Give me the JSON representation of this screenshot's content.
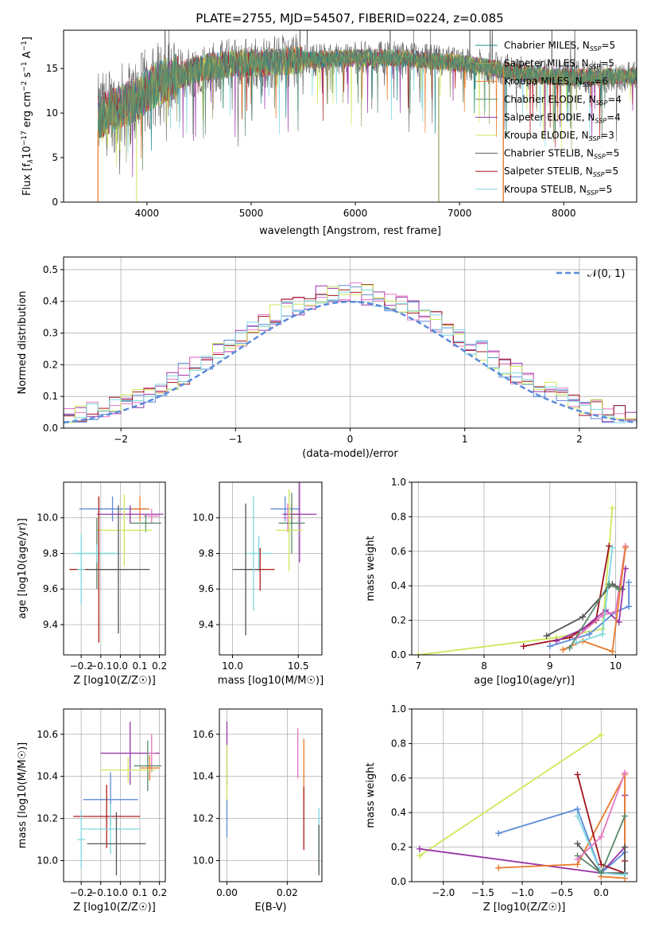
{
  "figure": {
    "title": "PLATE=2755, MJD=54507, FIBERID=0224, z=0.085"
  },
  "chart_data": [
    {
      "id": "spectrum",
      "type": "line",
      "xlabel": "wavelength [Angstrom, rest frame]",
      "ylabel": "Flux [f_λ 10^-17 erg cm^-2 s^-1 A^-1]",
      "xlim": [
        3200,
        8700
      ],
      "ylim": [
        0,
        19.3
      ],
      "xticks": [
        4000,
        5000,
        6000,
        7000,
        8000
      ],
      "yticks": [
        0,
        5,
        10,
        15
      ],
      "grid": false,
      "legend_position": "right",
      "series": [
        {
          "name": "Chabrier MILES, N_SSP=5",
          "color": "#1f8a8a"
        },
        {
          "name": "Salpeter MILES, N_SSP=5",
          "color": "#9aa05a"
        },
        {
          "name": "Kroupa MILES, N_SSP=6",
          "color": "#e87a2a"
        },
        {
          "name": "Chabrier ELODIE, N_SSP=4",
          "color": "#5a8a6a"
        },
        {
          "name": "Salpeter ELODIE, N_SSP=4",
          "color": "#9a36a8"
        },
        {
          "name": "Kroupa ELODIE, N_SSP=3",
          "color": "#cde85a"
        },
        {
          "name": "Chabrier STELIB, N_SSP=5",
          "color": "#555555"
        },
        {
          "name": "Salpeter STELIB, N_SSP=5",
          "color": "#b01a1a"
        },
        {
          "name": "Kroupa STELIB, N_SSP=5",
          "color": "#7ed8e0"
        }
      ],
      "envelope": {
        "x": [
          3530,
          3600,
          3700,
          3800,
          3900,
          4000,
          4100,
          4200,
          4300,
          4400,
          4500,
          4600,
          4700,
          4800,
          4900,
          5000,
          5200,
          5400,
          5600,
          5800,
          6000,
          6200,
          6400,
          6600,
          6800,
          7000,
          7200,
          7400,
          7600,
          7800,
          8000,
          8200,
          8400,
          8700
        ],
        "y": [
          9.5,
          10.0,
          10.5,
          11.0,
          11.5,
          12.5,
          13.3,
          13.8,
          14.2,
          14.6,
          15.0,
          15.2,
          15.3,
          15.5,
          15.6,
          15.6,
          15.7,
          15.9,
          16.0,
          16.1,
          16.2,
          16.2,
          16.2,
          16.0,
          15.8,
          15.6,
          15.3,
          14.9,
          14.5,
          14.2,
          14.0,
          14.0,
          14.1,
          14.2
        ]
      }
    },
    {
      "id": "residuals",
      "type": "histogram",
      "xlabel": "(data-model)/error",
      "ylabel": "Normed distribution",
      "xlim": [
        -2.5,
        2.5
      ],
      "ylim": [
        0,
        0.54
      ],
      "xticks": [
        -2,
        -1,
        0,
        1,
        2
      ],
      "yticks": [
        0.0,
        0.1,
        0.2,
        0.3,
        0.4,
        0.5
      ],
      "grid": true,
      "legend_position": "top-right",
      "reference_curve": {
        "name": "𝒩(0, 1)",
        "color": "#5b8bd9",
        "mu": 0,
        "sigma": 1
      },
      "bins": {
        "start": -2.5,
        "width": 0.1,
        "count": 50
      },
      "series_colors": [
        "#5b8bd9",
        "#9a36a8",
        "#e377c2",
        "#a0141e",
        "#cde85a",
        "#7ed8e0"
      ]
    },
    {
      "id": "age_vs_Z",
      "type": "errorbar",
      "xlabel": "Z [log10(Z/Z☉)]",
      "ylabel": "age  [log10(age/yr)]",
      "xlim": [
        -0.29,
        0.23
      ],
      "ylim": [
        9.23,
        10.2
      ],
      "xticks": [
        -0.2,
        -0.1,
        0.0,
        0.1,
        0.2
      ],
      "yticks": [
        9.4,
        9.6,
        9.8,
        10.0
      ],
      "grid": true,
      "points": [
        {
          "x": -0.04,
          "y": 10.05,
          "xerr": [
            0.17,
            0.17
          ],
          "yerr": [
            0.07,
            0.07
          ],
          "color": "#5b8bd9"
        },
        {
          "x": 0.1,
          "y": 10.05,
          "xerr": [
            0.05,
            0.05
          ],
          "yerr": [
            0.07,
            0.07
          ],
          "color": "#e87a2a"
        },
        {
          "x": 0.05,
          "y": 10.02,
          "xerr": [
            0.17,
            0.17
          ],
          "yerr": [
            0.05,
            0.05
          ],
          "color": "#9a36a8"
        },
        {
          "x": 0.16,
          "y": 10.01,
          "xerr": [
            0.04,
            0.04
          ],
          "yerr": [
            0.04,
            0.04
          ],
          "color": "#e377c2"
        },
        {
          "x": 0.13,
          "y": 9.97,
          "xerr": [
            0.08,
            0.08
          ],
          "yerr": [
            0.05,
            0.05
          ],
          "color": "#5a8a6a"
        },
        {
          "x": 0.02,
          "y": 9.93,
          "xerr": [
            0.14,
            0.14
          ],
          "yerr": [
            0.2,
            0.2
          ],
          "color": "#cde85a"
        },
        {
          "x": -0.12,
          "y": 9.8,
          "xerr": [
            0.1,
            0.1
          ],
          "yerr": [
            0.2,
            0.2
          ],
          "color": "#5a8a6a"
        },
        {
          "x": -0.12,
          "y": 9.8,
          "xerr": [
            0.12,
            0.12
          ],
          "yerr": [
            0.05,
            0.05
          ],
          "color": "#7ed8e0"
        },
        {
          "x": -0.11,
          "y": 9.71,
          "xerr": [
            0.15,
            0.15
          ],
          "yerr": [
            0.41,
            0.41
          ],
          "color": "#b01a1a"
        },
        {
          "x": -0.01,
          "y": 9.71,
          "xerr": [
            0.16,
            0.16
          ],
          "yerr": [
            0.36,
            0.36
          ],
          "color": "#555555"
        },
        {
          "x": -0.2,
          "y": 9.71,
          "xerr": [
            0.02,
            0.02
          ],
          "yerr": [
            0.2,
            0.2
          ],
          "color": "#7ed8e0"
        }
      ]
    },
    {
      "id": "age_vs_mass",
      "type": "errorbar",
      "xlabel": "mass [log10(M/M☉)]",
      "ylabel": "",
      "xlim": [
        9.9,
        10.68
      ],
      "ylim": [
        9.23,
        10.2
      ],
      "xticks": [
        10.0,
        10.5
      ],
      "yticks": [
        9.4,
        9.6,
        9.8,
        10.0
      ],
      "grid": true,
      "points": [
        {
          "x": 10.4,
          "y": 10.05,
          "xerr": [
            0.11,
            0.11
          ],
          "yerr": [
            0.07,
            0.07
          ],
          "color": "#5b8bd9"
        },
        {
          "x": 10.45,
          "y": 10.02,
          "xerr": [
            0.05,
            0.05
          ],
          "yerr": [
            0.06,
            0.06
          ],
          "color": "#e87a2a"
        },
        {
          "x": 10.51,
          "y": 10.02,
          "xerr": [
            0.13,
            0.13
          ],
          "yerr": [
            0.27,
            0.27
          ],
          "color": "#9a36a8"
        },
        {
          "x": 10.42,
          "y": 10.0,
          "xerr": [
            0.04,
            0.04
          ],
          "yerr": [
            0.08,
            0.08
          ],
          "color": "#e377c2"
        },
        {
          "x": 10.45,
          "y": 9.97,
          "xerr": [
            0.1,
            0.1
          ],
          "yerr": [
            0.17,
            0.17
          ],
          "color": "#5a8a6a"
        },
        {
          "x": 10.43,
          "y": 9.93,
          "xerr": [
            0.1,
            0.1
          ],
          "yerr": [
            0.23,
            0.23
          ],
          "color": "#cde85a"
        },
        {
          "x": 10.2,
          "y": 9.8,
          "xerr": [
            0.1,
            0.1
          ],
          "yerr": [
            0.1,
            0.1
          ],
          "color": "#7ed8e0"
        },
        {
          "x": 10.21,
          "y": 9.71,
          "xerr": [
            0.11,
            0.11
          ],
          "yerr": [
            0.12,
            0.12
          ],
          "color": "#b01a1a"
        },
        {
          "x": 10.1,
          "y": 9.71,
          "xerr": [
            0.1,
            0.1
          ],
          "yerr": [
            0.37,
            0.37
          ],
          "color": "#555555"
        },
        {
          "x": 10.16,
          "y": 9.8,
          "xerr": [
            0.02,
            0.02
          ],
          "yerr": [
            0.32,
            0.32
          ],
          "color": "#7ed8e0"
        }
      ]
    },
    {
      "id": "massweight_vs_age",
      "type": "line",
      "xlabel": "age  [log10(age/yr)]",
      "ylabel": "mass weight",
      "xlim": [
        6.9,
        10.32
      ],
      "ylim": [
        0,
        1.0
      ],
      "xticks": [
        7,
        8,
        9,
        10
      ],
      "yticks": [
        0.0,
        0.2,
        0.4,
        0.6,
        0.8,
        1.0
      ],
      "grid": true,
      "series": [
        {
          "color": "#cde85a",
          "x": [
            7.0,
            9.1,
            9.8,
            9.95
          ],
          "y": [
            0.0,
            0.1,
            0.15,
            0.85
          ]
        },
        {
          "color": "#555555",
          "x": [
            8.95,
            9.5,
            9.95,
            10.1
          ],
          "y": [
            0.11,
            0.22,
            0.41,
            0.38
          ]
        },
        {
          "color": "#a0141e",
          "x": [
            8.6,
            9.3,
            9.7,
            9.9
          ],
          "y": [
            0.05,
            0.1,
            0.2,
            0.63
          ]
        },
        {
          "color": "#5b8bd9",
          "x": [
            9.0,
            9.6,
            10.0,
            10.2,
            10.2
          ],
          "y": [
            0.05,
            0.12,
            0.25,
            0.28,
            0.42
          ]
        },
        {
          "color": "#9a36a8",
          "x": [
            9.1,
            9.5,
            9.85,
            10.05,
            10.15
          ],
          "y": [
            0.08,
            0.15,
            0.26,
            0.19,
            0.5
          ]
        },
        {
          "color": "#e377c2",
          "x": [
            9.4,
            9.8,
            10.0,
            10.15
          ],
          "y": [
            0.1,
            0.23,
            0.25,
            0.63
          ]
        },
        {
          "color": "#e87a2a",
          "x": [
            9.2,
            9.5,
            9.95,
            10.15
          ],
          "y": [
            0.03,
            0.08,
            0.02,
            0.62
          ]
        },
        {
          "color": "#7ed8e0",
          "x": [
            9.4,
            9.8,
            9.95
          ],
          "y": [
            0.07,
            0.12,
            0.62
          ]
        },
        {
          "color": "#5a8a6a",
          "x": [
            9.3,
            9.9,
            10.05
          ],
          "y": [
            0.04,
            0.41,
            0.38
          ]
        }
      ]
    },
    {
      "id": "mass_vs_Z",
      "type": "errorbar",
      "xlabel": "Z [log10(Z/Z☉)]",
      "ylabel": "mass [log10(M/M☉)]",
      "xlim": [
        -0.29,
        0.23
      ],
      "ylim": [
        9.9,
        10.72
      ],
      "xticks": [
        -0.2,
        -0.1,
        0.0,
        0.1,
        0.2
      ],
      "yticks": [
        10.0,
        10.2,
        10.4,
        10.6
      ],
      "grid": true,
      "points": [
        {
          "x": 0.05,
          "y": 10.51,
          "xerr": [
            0.15,
            0.15
          ],
          "yerr": [
            0.15,
            0.15
          ],
          "color": "#9a36a8"
        },
        {
          "x": 0.16,
          "y": 10.51,
          "xerr": [
            0.02,
            0.02
          ],
          "yerr": [
            0.09,
            0.09
          ],
          "color": "#e377c2"
        },
        {
          "x": 0.14,
          "y": 10.45,
          "xerr": [
            0.07,
            0.07
          ],
          "yerr": [
            0.12,
            0.12
          ],
          "color": "#5a8a6a"
        },
        {
          "x": 0.15,
          "y": 10.44,
          "xerr": [
            0.05,
            0.05
          ],
          "yerr": [
            0.06,
            0.06
          ],
          "color": "#e87a2a"
        },
        {
          "x": 0.04,
          "y": 10.43,
          "xerr": [
            0.14,
            0.14
          ],
          "yerr": [
            0.06,
            0.06
          ],
          "color": "#cde85a"
        },
        {
          "x": -0.05,
          "y": 10.29,
          "xerr": [
            0.14,
            0.14
          ],
          "yerr": [
            0.13,
            0.13
          ],
          "color": "#5b8bd9"
        },
        {
          "x": -0.07,
          "y": 10.21,
          "xerr": [
            0.17,
            0.17
          ],
          "yerr": [
            0.15,
            0.15
          ],
          "color": "#b01a1a"
        },
        {
          "x": -0.05,
          "y": 10.15,
          "xerr": [
            0.15,
            0.15
          ],
          "yerr": [
            0.12,
            0.12
          ],
          "color": "#7ed8e0"
        },
        {
          "x": -0.02,
          "y": 10.08,
          "xerr": [
            0.15,
            0.15
          ],
          "yerr": [
            0.15,
            0.15
          ],
          "color": "#555555"
        },
        {
          "x": -0.2,
          "y": 10.1,
          "xerr": [
            0.02,
            0.02
          ],
          "yerr": [
            0.14,
            0.14
          ],
          "color": "#7ed8e0"
        }
      ]
    },
    {
      "id": "mass_vs_EBV",
      "type": "errorbar",
      "xlabel": "E(B-V)",
      "ylabel": "",
      "xlim": [
        -0.0025,
        0.0315
      ],
      "ylim": [
        9.9,
        10.72
      ],
      "xticks": [
        0.0,
        0.02
      ],
      "yticks": [
        10.0,
        10.2,
        10.4,
        10.6
      ],
      "grid": true,
      "points": [
        {
          "x": 0.0,
          "y": 10.51,
          "xerr": [
            0,
            0
          ],
          "yerr": [
            0.15,
            0.15
          ],
          "color": "#9a36a8"
        },
        {
          "x": 0.0,
          "y": 10.4,
          "xerr": [
            0,
            0
          ],
          "yerr": [
            0.15,
            0.15
          ],
          "color": "#cde85a"
        },
        {
          "x": 0.0,
          "y": 10.2,
          "xerr": [
            0,
            0
          ],
          "yerr": [
            0.09,
            0.09
          ],
          "color": "#5b8bd9"
        },
        {
          "x": 0.0235,
          "y": 10.51,
          "xerr": [
            0,
            0
          ],
          "yerr": [
            0.12,
            0.12
          ],
          "color": "#e377c2"
        },
        {
          "x": 0.0255,
          "y": 10.43,
          "xerr": [
            0,
            0
          ],
          "yerr": [
            0.15,
            0.15
          ],
          "color": "#e87a2a"
        },
        {
          "x": 0.0255,
          "y": 10.2,
          "xerr": [
            0,
            0
          ],
          "yerr": [
            0.15,
            0.15
          ],
          "color": "#b01a1a"
        },
        {
          "x": 0.0305,
          "y": 10.1,
          "xerr": [
            0,
            0
          ],
          "yerr": [
            0.15,
            0.15
          ],
          "color": "#7ed8e0"
        },
        {
          "x": 0.0305,
          "y": 10.05,
          "xerr": [
            0,
            0
          ],
          "yerr": [
            0.12,
            0.12
          ],
          "color": "#555555"
        }
      ]
    },
    {
      "id": "massweight_vs_Z",
      "type": "line",
      "xlabel": "Z [log10(Z/Z☉)]",
      "ylabel": "mass weight",
      "xlim": [
        -2.4,
        0.45
      ],
      "ylim": [
        0,
        1.0
      ],
      "xticks": [
        -2.0,
        -1.5,
        -1.0,
        -0.5,
        0.0
      ],
      "yticks": [
        0.0,
        0.2,
        0.4,
        0.6,
        0.8,
        1.0
      ],
      "grid": true,
      "series": [
        {
          "color": "#cde85a",
          "x": [
            -2.3,
            0.0
          ],
          "y": [
            0.15,
            0.85
          ]
        },
        {
          "color": "#9a36a8",
          "x": [
            -2.3,
            0.0,
            0.3,
            0.3
          ],
          "y": [
            0.19,
            0.05,
            0.2,
            0.5
          ]
        },
        {
          "color": "#5b8bd9",
          "x": [
            -1.3,
            -0.3,
            0.0,
            0.3
          ],
          "y": [
            0.28,
            0.42,
            0.05,
            0.17
          ]
        },
        {
          "color": "#e87a2a",
          "x": [
            -1.3,
            -0.3,
            0.3,
            0.3,
            0.0
          ],
          "y": [
            0.08,
            0.1,
            0.62,
            0.02,
            0.03
          ]
        },
        {
          "color": "#a0141e",
          "x": [
            -0.3,
            0.0,
            0.3,
            0.3
          ],
          "y": [
            0.62,
            0.1,
            0.05,
            0.12
          ]
        },
        {
          "color": "#555555",
          "x": [
            -0.3,
            0.0,
            0.3,
            0.3
          ],
          "y": [
            0.22,
            0.05,
            0.05,
            0.2
          ]
        },
        {
          "color": "#7ed8e0",
          "x": [
            -0.3,
            0.0,
            0.3
          ],
          "y": [
            0.38,
            0.05,
            0.04
          ]
        },
        {
          "color": "#5a8a6a",
          "x": [
            -0.3,
            0.0,
            0.3
          ],
          "y": [
            0.15,
            0.05,
            0.38
          ]
        },
        {
          "color": "#e377c2",
          "x": [
            -0.3,
            0.0,
            0.3
          ],
          "y": [
            0.13,
            0.26,
            0.63
          ]
        }
      ]
    }
  ]
}
